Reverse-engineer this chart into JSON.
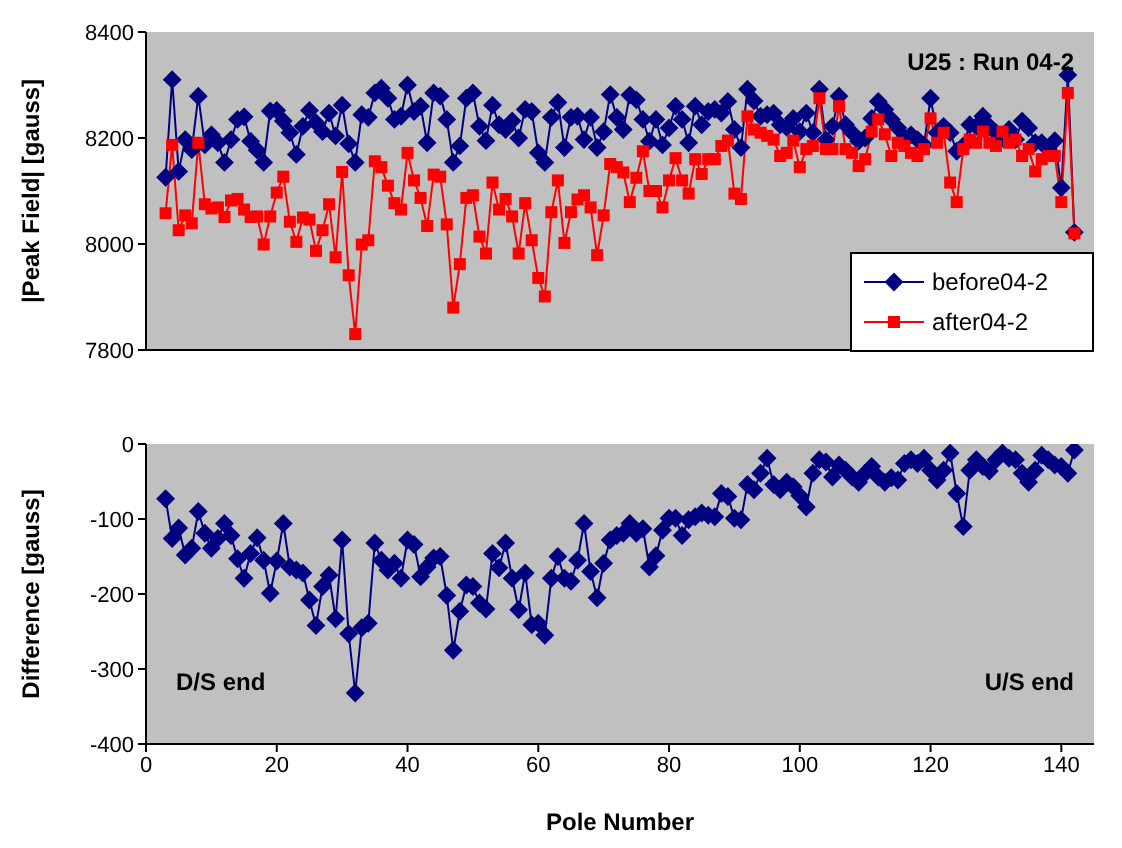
{
  "chart_data": [
    {
      "type": "line",
      "ylabel": "|Peak Field| [gauss]",
      "annotations": [
        "U25 : Run 04-2"
      ],
      "x": [
        3,
        4,
        5,
        6,
        7,
        8,
        9,
        10,
        11,
        12,
        13,
        14,
        15,
        16,
        17,
        18,
        19,
        20,
        21,
        22,
        23,
        24,
        25,
        26,
        27,
        28,
        29,
        30,
        31,
        32,
        33,
        34,
        35,
        36,
        37,
        38,
        39,
        40,
        41,
        42,
        43,
        44,
        45,
        46,
        47,
        48,
        49,
        50,
        51,
        52,
        53,
        54,
        55,
        56,
        57,
        58,
        59,
        60,
        61,
        62,
        63,
        64,
        65,
        66,
        67,
        68,
        69,
        70,
        71,
        72,
        73,
        74,
        75,
        76,
        77,
        78,
        79,
        80,
        81,
        82,
        83,
        84,
        85,
        86,
        87,
        88,
        89,
        90,
        91,
        92,
        93,
        94,
        95,
        96,
        97,
        98,
        99,
        100,
        101,
        102,
        103,
        104,
        105,
        106,
        107,
        108,
        109,
        110,
        111,
        112,
        113,
        114,
        115,
        116,
        117,
        118,
        119,
        120,
        121,
        122,
        123,
        124,
        125,
        126,
        127,
        128,
        129,
        130,
        131,
        132,
        133,
        134,
        135,
        136,
        137,
        138,
        139,
        140,
        141,
        142
      ],
      "series": [
        {
          "name": "before04-2",
          "color": "#000080",
          "marker": "diamond",
          "values": [
            8126,
            8310,
            8137,
            8197,
            8178,
            8279,
            8187,
            8206,
            8191,
            8154,
            8197,
            8235,
            8240,
            8194,
            8177,
            8154,
            8251,
            8252,
            8232,
            8210,
            8169,
            8222,
            8252,
            8229,
            8212,
            8247,
            8204,
            8262,
            8189,
            8154,
            8244,
            8239,
            8285,
            8294,
            8275,
            8235,
            8241,
            8300,
            8250,
            8260,
            8191,
            8285,
            8279,
            8235,
            8154,
            8185,
            8275,
            8285,
            8222,
            8195,
            8262,
            8225,
            8216,
            8232,
            8200,
            8254,
            8250,
            8172,
            8154,
            8239,
            8267,
            8182,
            8239,
            8241,
            8197,
            8239,
            8182,
            8212,
            8282,
            8239,
            8216,
            8281,
            8272,
            8235,
            8194,
            8235,
            8187,
            8219,
            8260,
            8235,
            8191,
            8260,
            8225,
            8250,
            8254,
            8247,
            8269,
            8216,
            8182,
            8292,
            8270,
            8241,
            8244,
            8247,
            8225,
            8220,
            8237,
            8212,
            8247,
            8210,
            8292,
            8197,
            8222,
            8279,
            8225,
            8210,
            8194,
            8200,
            8237,
            8269,
            8254,
            8235,
            8219,
            8200,
            8206,
            8197,
            8187,
            8275,
            8210,
            8222,
            8210,
            8175,
            8185,
            8225,
            8222,
            8241,
            8222,
            8210,
            8200,
            8216,
            8197,
            8232,
            8219,
            8191,
            8191,
            8179,
            8195,
            8106,
            8319,
            8022
          ]
        },
        {
          "name": "after04-2",
          "color": "#ff0000",
          "marker": "square",
          "values": [
            8058,
            8187,
            8026,
            8054,
            8039,
            8191,
            8075,
            8067,
            8069,
            8051,
            8082,
            8085,
            8065,
            8051,
            8052,
            7999,
            8052,
            8097,
            8127,
            8042,
            8004,
            8050,
            8046,
            7987,
            8026,
            8075,
            7975,
            8136,
            7941,
            7830,
            7999,
            8007,
            8156,
            8145,
            8110,
            8077,
            8065,
            8172,
            8120,
            8087,
            8034,
            8131,
            8127,
            8037,
            7880,
            7962,
            8087,
            8092,
            8014,
            7982,
            8116,
            8065,
            8085,
            8052,
            7982,
            8077,
            8007,
            7936,
            7901,
            8060,
            8120,
            8002,
            8060,
            8084,
            8092,
            8069,
            7979,
            8054,
            8151,
            8145,
            8135,
            8079,
            8125,
            8175,
            8100,
            8100,
            8069,
            8120,
            8162,
            8120,
            8095,
            8160,
            8132,
            8160,
            8160,
            8185,
            8195,
            8095,
            8085,
            8241,
            8216,
            8210,
            8204,
            8197,
            8166,
            8172,
            8195,
            8145,
            8179,
            8185,
            8275,
            8179,
            8179,
            8260,
            8179,
            8172,
            8147,
            8160,
            8212,
            8235,
            8207,
            8166,
            8191,
            8185,
            8172,
            8166,
            8179,
            8237,
            8191,
            8210,
            8116,
            8079,
            8179,
            8197,
            8191,
            8212,
            8191,
            8185,
            8212,
            8191,
            8197,
            8166,
            8179,
            8137,
            8160,
            8166,
            8166,
            8079,
            8285,
            8020
          ]
        }
      ],
      "xlim": [
        0,
        145
      ],
      "xticks": [
        0,
        20,
        40,
        60,
        80,
        100,
        120,
        140
      ],
      "ylim": [
        7800,
        8400
      ],
      "yticks": [
        7800,
        8000,
        8200,
        8400
      ],
      "tick_labels": "y",
      "legend": "bottom right"
    },
    {
      "type": "line",
      "xlabel": "Pole Number",
      "ylabel": "Difference [gauss]",
      "annotations": [
        "D/S end",
        "U/S end"
      ],
      "x": [
        3,
        4,
        5,
        6,
        7,
        8,
        9,
        10,
        11,
        12,
        13,
        14,
        15,
        16,
        17,
        18,
        19,
        20,
        21,
        22,
        23,
        24,
        25,
        26,
        27,
        28,
        29,
        30,
        31,
        32,
        33,
        34,
        35,
        36,
        37,
        38,
        39,
        40,
        41,
        42,
        43,
        44,
        45,
        46,
        47,
        48,
        49,
        50,
        51,
        52,
        53,
        54,
        55,
        56,
        57,
        58,
        59,
        60,
        61,
        62,
        63,
        64,
        65,
        66,
        67,
        68,
        69,
        70,
        71,
        72,
        73,
        74,
        75,
        76,
        77,
        78,
        79,
        80,
        81,
        82,
        83,
        84,
        85,
        86,
        87,
        88,
        89,
        90,
        91,
        92,
        93,
        94,
        95,
        96,
        97,
        98,
        99,
        100,
        101,
        102,
        103,
        104,
        105,
        106,
        107,
        108,
        109,
        110,
        111,
        112,
        113,
        114,
        115,
        116,
        117,
        118,
        119,
        120,
        121,
        122,
        123,
        124,
        125,
        126,
        127,
        128,
        129,
        130,
        131,
        132,
        133,
        134,
        135,
        136,
        137,
        138,
        139,
        140,
        141,
        142
      ],
      "series": [
        {
          "color": "#000080",
          "marker": "diamond",
          "values": [
            -73,
            -126,
            -112,
            -148,
            -139,
            -90,
            -119,
            -139,
            -126,
            -106,
            -122,
            -153,
            -179,
            -146,
            -125,
            -155,
            -199,
            -156,
            -106,
            -164,
            -168,
            -172,
            -208,
            -242,
            -190,
            -175,
            -233,
            -128,
            -253,
            -332,
            -245,
            -239,
            -132,
            -155,
            -168,
            -159,
            -179,
            -128,
            -134,
            -177,
            -164,
            -152,
            -150,
            -202,
            -275,
            -223,
            -188,
            -190,
            -212,
            -220,
            -146,
            -165,
            -132,
            -179,
            -221,
            -172,
            -241,
            -239,
            -255,
            -179,
            -150,
            -179,
            -183,
            -155,
            -106,
            -170,
            -205,
            -159,
            -128,
            -122,
            -119,
            -106,
            -119,
            -113,
            -164,
            -149,
            -115,
            -99,
            -99,
            -122,
            -101,
            -97,
            -92,
            -95,
            -97,
            -66,
            -70,
            -99,
            -101,
            -54,
            -61,
            -39,
            -19,
            -54,
            -61,
            -51,
            -57,
            -69,
            -84,
            -39,
            -21,
            -24,
            -44,
            -28,
            -35,
            -44,
            -51,
            -39,
            -30,
            -44,
            -51,
            -45,
            -48,
            -26,
            -21,
            -26,
            -19,
            -35,
            -48,
            -35,
            -12,
            -66,
            -110,
            -35,
            -21,
            -30,
            -36,
            -21,
            -12,
            -19,
            -21,
            -39,
            -51,
            -35,
            -15,
            -21,
            -28,
            -30,
            -39,
            -8
          ]
        }
      ],
      "xlim": [
        0,
        145
      ],
      "xticks": [
        0,
        20,
        40,
        60,
        80,
        100,
        120,
        140
      ],
      "ylim": [
        -400,
        0
      ],
      "yticks": [
        -400,
        -300,
        -200,
        -100,
        0
      ]
    }
  ]
}
